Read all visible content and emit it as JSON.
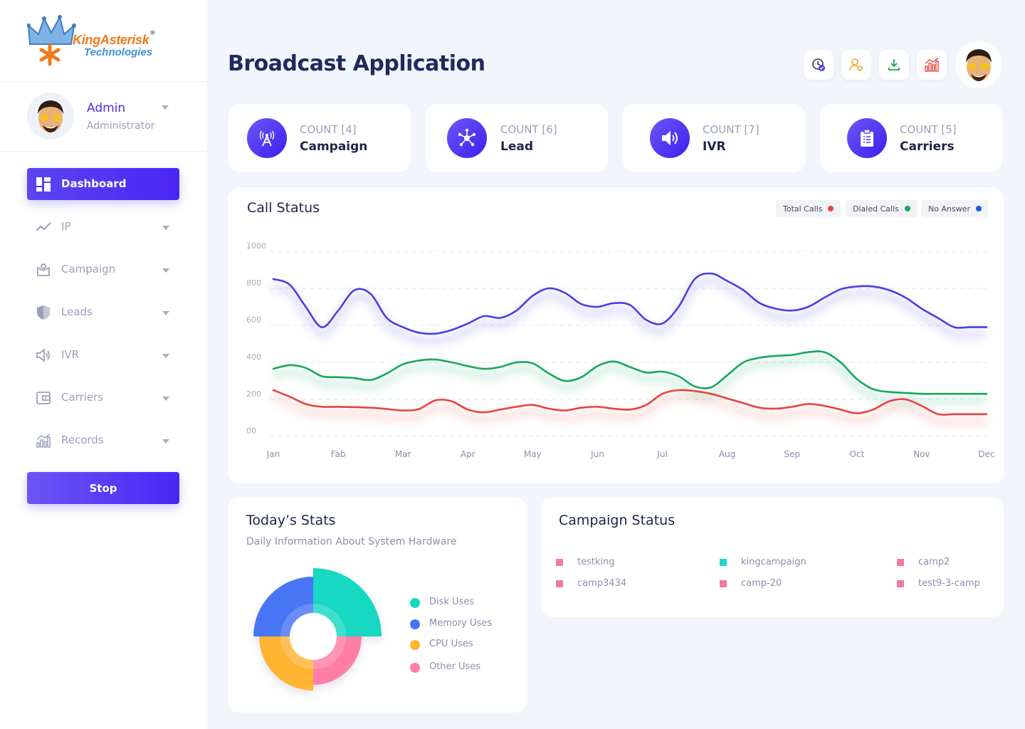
{
  "brand": {
    "name_line1": "KingAsterisk",
    "name_line2": "Technologies",
    "registered": "®"
  },
  "profile": {
    "name": "Admin",
    "role": "Administrator"
  },
  "sidebar": {
    "items": [
      {
        "label": "Dashboard",
        "icon": "dashboard-icon"
      },
      {
        "label": "IP",
        "icon": "trend-icon"
      },
      {
        "label": "Campaign",
        "icon": "campaign-icon"
      },
      {
        "label": "Leads",
        "icon": "shield-icon"
      },
      {
        "label": "IVR",
        "icon": "speaker-icon"
      },
      {
        "label": "Carriers",
        "icon": "wallet-icon"
      },
      {
        "label": "Records",
        "icon": "bar-chart-icon"
      }
    ],
    "stop_label": "Stop"
  },
  "header": {
    "title": "Broadcast Application",
    "actions": [
      "clock-check-icon",
      "user-settings-icon",
      "download-icon",
      "analytics-icon"
    ]
  },
  "counts": [
    {
      "count": "COUNT [4]",
      "label": "Campaign",
      "icon": "tower-icon"
    },
    {
      "count": "COUNT [6]",
      "label": "Lead",
      "icon": "network-icon"
    },
    {
      "count": "COUNT [7]",
      "label": "IVR",
      "icon": "volume-icon"
    },
    {
      "count": "COUNT [5]",
      "label": "Carriers",
      "icon": "clipboard-icon"
    }
  ],
  "call_status": {
    "title": "Call Status",
    "legend": [
      {
        "label": "Total Calls",
        "color": "#e5443f"
      },
      {
        "label": "Dialed Calls",
        "color": "#17a85a"
      },
      {
        "label": "No Answer",
        "color": "#1d57e0"
      }
    ]
  },
  "chart_data": {
    "type": "line",
    "title": "Call Status",
    "xlabel": "",
    "ylabel": "",
    "categories": [
      "Jan",
      "Fab",
      "Mar",
      "Apr",
      "May",
      "Jun",
      "Jul",
      "Aug",
      "Sep",
      "Oct",
      "Nov",
      "Dec"
    ],
    "y_ticks": [
      "00",
      "200",
      "400",
      "600",
      "800",
      "1000"
    ],
    "ylim": [
      0,
      1000
    ],
    "x": [
      0,
      0.25,
      0.5,
      0.75,
      1,
      1.25,
      1.5,
      1.75,
      2,
      2.25,
      2.5,
      2.75,
      3,
      3.25,
      3.5,
      3.75,
      4,
      4.25,
      4.5,
      4.75,
      5,
      5.25,
      5.5,
      5.75,
      6,
      6.25,
      6.5,
      6.75,
      7,
      7.25,
      7.5,
      7.75,
      8,
      8.25,
      8.5,
      8.75,
      9,
      9.25,
      9.5,
      9.75,
      10,
      10.25,
      10.5,
      10.75,
      11
    ],
    "series": [
      {
        "name": "No Answer",
        "color": "#4a3fe0",
        "values": [
          850,
          820,
          700,
          590,
          680,
          790,
          770,
          640,
          590,
          560,
          555,
          575,
          610,
          650,
          640,
          680,
          760,
          800,
          775,
          715,
          700,
          720,
          710,
          630,
          610,
          700,
          850,
          880,
          840,
          790,
          720,
          690,
          680,
          700,
          750,
          795,
          810,
          810,
          790,
          750,
          690,
          640,
          590,
          590,
          590
        ]
      },
      {
        "name": "Dialed Calls",
        "color": "#17a85a",
        "values": [
          365,
          385,
          370,
          325,
          320,
          315,
          305,
          340,
          390,
          410,
          415,
          400,
          380,
          365,
          375,
          400,
          395,
          340,
          300,
          320,
          380,
          405,
          375,
          345,
          350,
          325,
          270,
          265,
          330,
          400,
          425,
          435,
          440,
          455,
          455,
          400,
          310,
          255,
          240,
          235,
          230,
          230,
          230,
          230,
          230
        ]
      },
      {
        "name": "Total Calls",
        "color": "#e5443f",
        "values": [
          250,
          215,
          175,
          160,
          160,
          158,
          155,
          148,
          140,
          148,
          195,
          190,
          145,
          130,
          145,
          160,
          170,
          150,
          140,
          155,
          160,
          150,
          145,
          170,
          230,
          250,
          245,
          230,
          205,
          180,
          155,
          150,
          160,
          175,
          165,
          145,
          125,
          145,
          190,
          200,
          165,
          120,
          120,
          120,
          120
        ]
      }
    ]
  },
  "todays_stats": {
    "title": "Today’s Stats",
    "subtitle": "Daily Information About System Hardware",
    "items": [
      {
        "label": "Disk Uses",
        "color": "#19d8c3"
      },
      {
        "label": "Memory Uses",
        "color": "#4674f5"
      },
      {
        "label": "CPU Uses",
        "color": "#ffb432"
      },
      {
        "label": "Other Uses",
        "color": "#ff7ea6"
      }
    ]
  },
  "campaign_status": {
    "title": "Campaign Status",
    "items": [
      {
        "label": "testking",
        "color": "#f07aa0"
      },
      {
        "label": "kingcampaign",
        "color": "#19d8c3"
      },
      {
        "label": "camp2",
        "color": "#f07aa0"
      },
      {
        "label": "camp3434",
        "color": "#f07aa0"
      },
      {
        "label": "camp-20",
        "color": "#f07aa0"
      },
      {
        "label": "test9-3-camp",
        "color": "#f07aa0"
      }
    ]
  }
}
